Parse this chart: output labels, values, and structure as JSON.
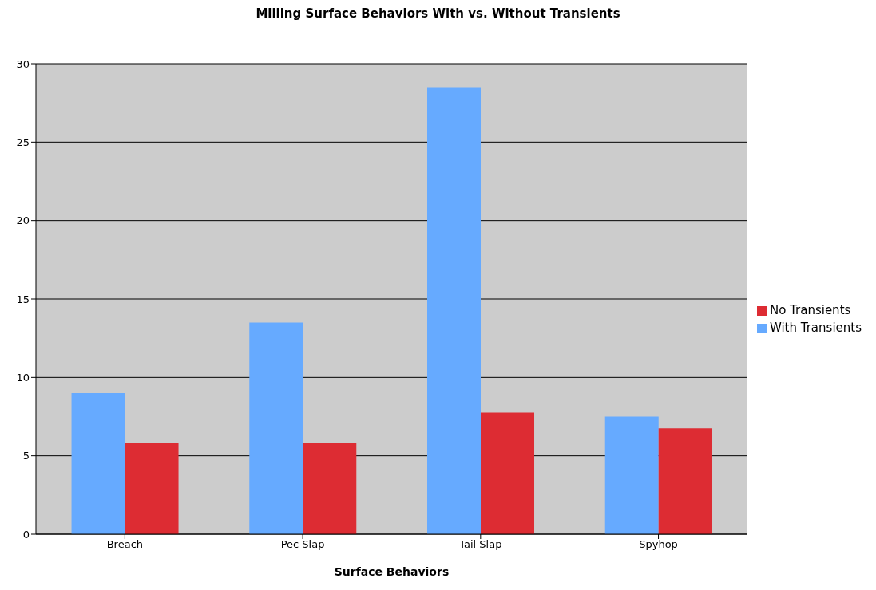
{
  "chart_data": {
    "type": "bar",
    "title": "Milling Surface Behaviors With vs. Without Transients",
    "xlabel": "Surface Behaviors",
    "categories": [
      "Breach",
      "Pec Slap",
      "Tail Slap",
      "Spyhop"
    ],
    "series": [
      {
        "name": "With Transients",
        "color": "#66aaff",
        "values": [
          9,
          13.5,
          28.5,
          7.5
        ]
      },
      {
        "name": "No Transients",
        "color": "#dd2c33",
        "values": [
          5.8,
          5.8,
          7.75,
          6.75
        ]
      }
    ],
    "ylim": [
      0,
      30
    ],
    "yticks": [
      0,
      5,
      10,
      15,
      20,
      25,
      30
    ],
    "grid": "y",
    "legend": "right"
  }
}
